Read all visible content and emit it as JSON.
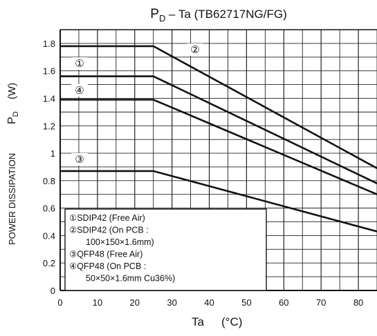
{
  "chart_data": {
    "type": "line",
    "title_main": "P",
    "title_sub": "D",
    "title_rest": " – Ta (TB62717NG/FG)",
    "xlabel": "Ta",
    "xunit": "(°C)",
    "ylabel": "POWER DISSIPATION",
    "ysym": "P",
    "ysym_sub": "D",
    "yunit": "(W)",
    "xlim": [
      0,
      85
    ],
    "ylim": [
      0,
      1.9
    ],
    "x_ticks": [
      "0",
      "10",
      "20",
      "30",
      "40",
      "50",
      "60",
      "70",
      "80"
    ],
    "y_ticks": [
      "0",
      "0.2",
      "0.4",
      "0.6",
      "0.8",
      "1",
      "1.2",
      "1.4",
      "1.6",
      "1.8"
    ],
    "grid": true,
    "series": [
      {
        "name": "①",
        "x": [
          0,
          25,
          85
        ],
        "y": [
          1.56,
          1.56,
          0.78
        ]
      },
      {
        "name": "②",
        "x": [
          0,
          25,
          85
        ],
        "y": [
          1.78,
          1.78,
          0.89
        ]
      },
      {
        "name": "③",
        "x": [
          0,
          25,
          85
        ],
        "y": [
          0.87,
          0.87,
          0.43
        ]
      },
      {
        "name": "④",
        "x": [
          0,
          25,
          85
        ],
        "y": [
          1.39,
          1.39,
          0.7
        ]
      }
    ],
    "legend": [
      "①SDIP42 (Free Air)",
      "②SDIP42 (On PCB :",
      "100×150×1.6mm)",
      "③QFP48 (Free Air)",
      "④QFP48 (On PCB :",
      "50×50×1.6mm Cu36%)"
    ],
    "legend_position": "bottom-left"
  }
}
